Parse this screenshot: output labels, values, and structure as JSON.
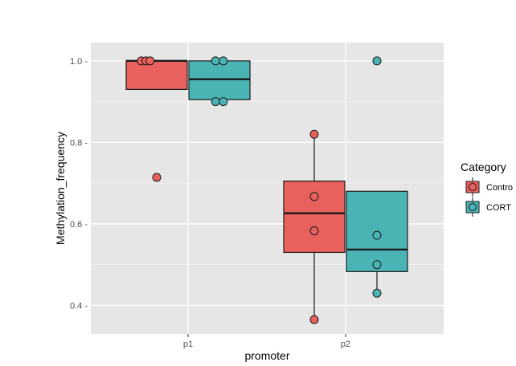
{
  "chart_data": {
    "type": "boxplot",
    "xlabel": "promoter",
    "ylabel": "Methylation_frequency",
    "categories": [
      "p1",
      "p2"
    ],
    "y_ticks": [
      0.4,
      0.6,
      0.8,
      1.0
    ],
    "y_tick_labels": [
      "0.4 -",
      "0.6 -",
      "0.8 -",
      "1.0 -"
    ],
    "ylim": [
      0.33,
      1.045
    ],
    "grid": true,
    "legend": {
      "title": "Category",
      "position": "right",
      "entries": [
        "Contro",
        "CORT"
      ]
    },
    "series": [
      {
        "name": "Control",
        "color": "#e8615d",
        "boxes": [
          {
            "category": "p1",
            "q1": 0.93,
            "median": 1.0,
            "q3": 1.0,
            "whisker_low": 0.93,
            "whisker_high": 1.0
          },
          {
            "category": "p2",
            "q1": 0.53,
            "median": 0.626,
            "q3": 0.705,
            "whisker_low": 0.365,
            "whisker_high": 0.82
          }
        ],
        "outliers": [
          {
            "category": "p1",
            "y": 0.714
          }
        ],
        "points": [
          {
            "category": "p1",
            "y": 1.0,
            "jitter": -0.6
          },
          {
            "category": "p1",
            "y": 1.0,
            "jitter": -0.42
          },
          {
            "category": "p1",
            "y": 1.0,
            "jitter": -0.26
          },
          {
            "category": "p2",
            "y": 0.82,
            "jitter": 0.0
          },
          {
            "category": "p2",
            "y": 0.667,
            "jitter": 0.0
          },
          {
            "category": "p2",
            "y": 0.583,
            "jitter": 0.0
          },
          {
            "category": "p2",
            "y": 0.365,
            "jitter": 0.0
          }
        ]
      },
      {
        "name": "CORT",
        "color": "#4ab4b5",
        "boxes": [
          {
            "category": "p1",
            "q1": 0.905,
            "median": 0.955,
            "q3": 1.0,
            "whisker_low": 0.905,
            "whisker_high": 1.0
          },
          {
            "category": "p2",
            "q1": 0.483,
            "median": 0.537,
            "q3": 0.68,
            "whisker_low": 0.43,
            "whisker_high": 0.68
          }
        ],
        "outliers": [
          {
            "category": "p2",
            "y": 1.0
          }
        ],
        "points": [
          {
            "category": "p1",
            "y": 1.0,
            "jitter": -0.15
          },
          {
            "category": "p1",
            "y": 1.0,
            "jitter": 0.15
          },
          {
            "category": "p1",
            "y": 0.9,
            "jitter": -0.15
          },
          {
            "category": "p1",
            "y": 0.9,
            "jitter": 0.15
          },
          {
            "category": "p2",
            "y": 0.572,
            "jitter": 0.0
          },
          {
            "category": "p2",
            "y": 0.5,
            "jitter": 0.0
          },
          {
            "category": "p2",
            "y": 0.43,
            "jitter": 0.0
          }
        ]
      }
    ]
  }
}
